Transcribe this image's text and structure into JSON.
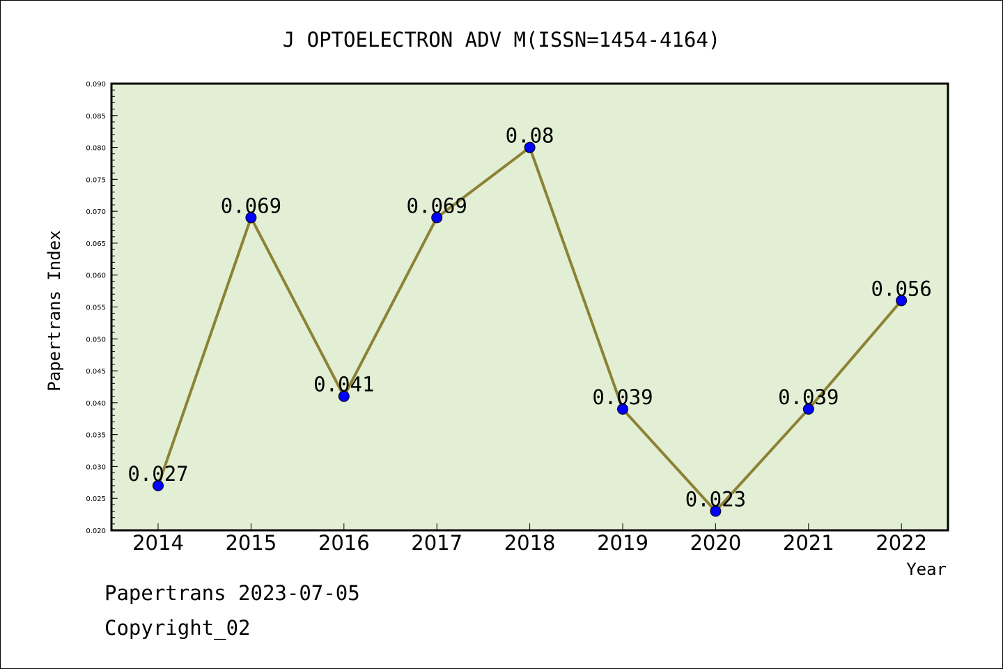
{
  "chart_data": {
    "type": "line",
    "title": "J OPTOELECTRON ADV M(ISSN=1454-4164)",
    "xlabel": "Year",
    "ylabel": "Papertrans Index",
    "categories": [
      "2014",
      "2015",
      "2016",
      "2017",
      "2018",
      "2019",
      "2020",
      "2021",
      "2022"
    ],
    "series": [
      {
        "values": [
          0.027,
          0.069,
          0.041,
          0.069,
          0.08,
          0.039,
          0.023,
          0.039,
          0.056
        ],
        "data_labels": [
          "0.027",
          "0.069",
          "0.041",
          "0.069",
          "0.08",
          "0.039",
          "0.023",
          "0.039",
          "0.056"
        ]
      }
    ],
    "ylim": [
      0.02,
      0.09
    ],
    "y_ticks": [
      "0.020",
      "0.025",
      "0.030",
      "0.035",
      "0.040",
      "0.045",
      "0.050",
      "0.055",
      "0.060",
      "0.065",
      "0.070",
      "0.075",
      "0.080",
      "0.085",
      "0.090"
    ],
    "grid": false,
    "legend": "none",
    "colors": {
      "plot_background": "#e2efd5",
      "line": "#8c8235",
      "marker": "#0000ff"
    }
  },
  "footer": {
    "line1": "Papertrans 2023-07-05",
    "line2": "Copyright_02"
  }
}
